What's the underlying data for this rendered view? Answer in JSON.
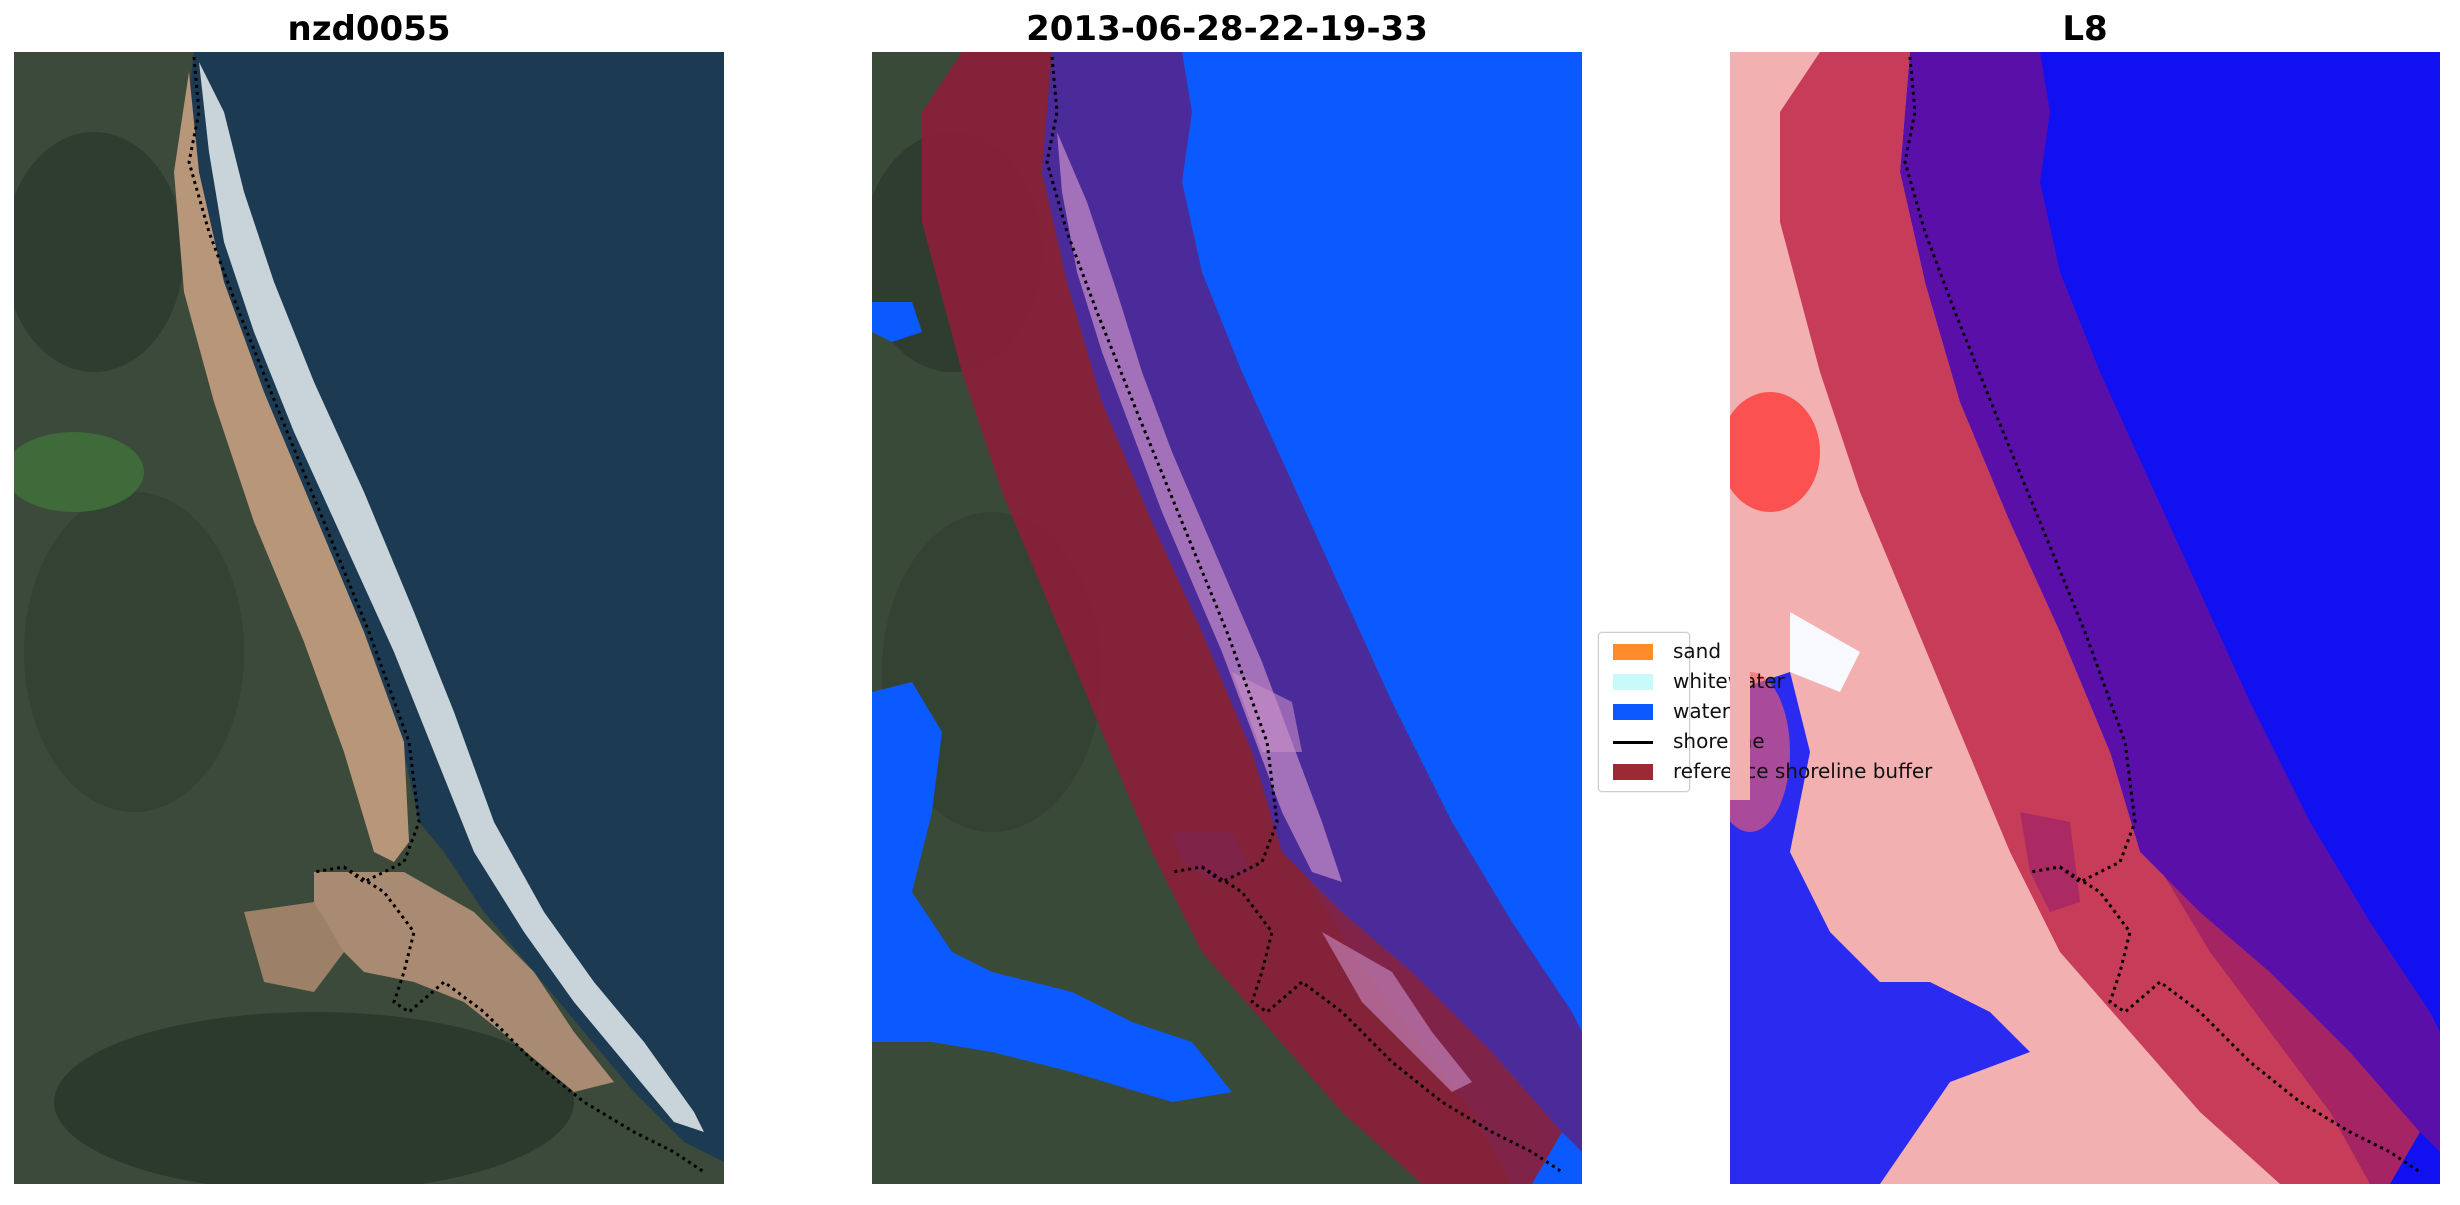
{
  "panels": [
    {
      "title": "nzd0055"
    },
    {
      "title": "2013-06-28-22-19-33"
    },
    {
      "title": "L8"
    }
  ],
  "legend": {
    "items": [
      {
        "label": "sand",
        "color": "#ff8c2a",
        "kind": "patch"
      },
      {
        "label": "whitewater",
        "color": "#c8fafa",
        "kind": "patch"
      },
      {
        "label": "water",
        "color": "#0a5aff",
        "kind": "patch"
      },
      {
        "label": "shoreline",
        "color": "#000000",
        "kind": "line"
      },
      {
        "label": "reference shoreline buffer",
        "color": "#9b2a35",
        "kind": "patch"
      }
    ]
  },
  "colors": {
    "ocean": "#1c3b52",
    "land": "#3a4a38",
    "sand_beach": "#b8967a",
    "surf": "#e6eef2",
    "water_class": "#0a5aff",
    "buffer": "#8b1e3a",
    "buffer_over_water": "#4b2a9a",
    "index_high": "#ff2020",
    "index_low": "#1010f0"
  }
}
